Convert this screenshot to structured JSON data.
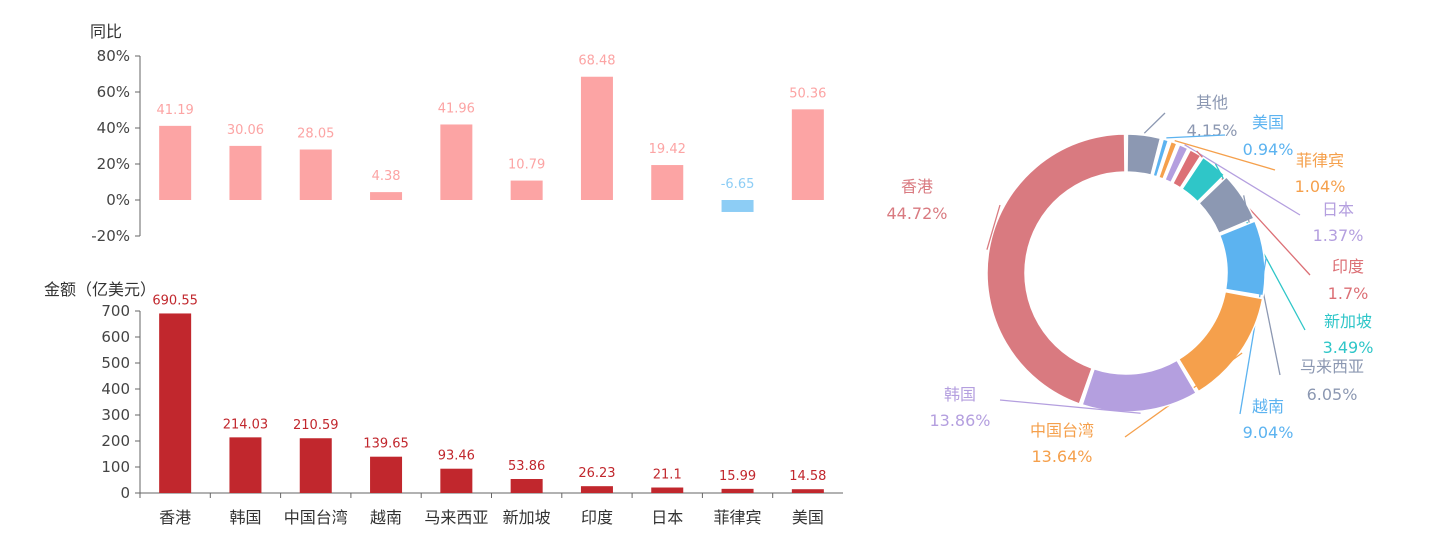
{
  "chart_data": [
    {
      "type": "bar",
      "ylabel": "同比",
      "categories": [
        "香港",
        "韩国",
        "中国台湾",
        "越南",
        "马来西亚",
        "新加坡",
        "印度",
        "日本",
        "菲律宾",
        "美国"
      ],
      "values": [
        41.19,
        30.06,
        28.05,
        4.38,
        41.96,
        10.79,
        68.48,
        19.42,
        -6.65,
        50.36
      ],
      "ylim": [
        -20,
        80
      ],
      "yticks": [
        "-20%",
        "0%",
        "20%",
        "40%",
        "60%",
        "80%"
      ],
      "colors": {
        "positive": "#fca4a4",
        "negative": "#8dcdf5"
      }
    },
    {
      "type": "bar",
      "ylabel": "金额（亿美元）",
      "categories": [
        "香港",
        "韩国",
        "中国台湾",
        "越南",
        "马来西亚",
        "新加坡",
        "印度",
        "日本",
        "菲律宾",
        "美国"
      ],
      "values": [
        690.55,
        214.03,
        210.59,
        139.65,
        93.46,
        53.86,
        26.23,
        21.1,
        15.99,
        14.58
      ],
      "ylim": [
        0,
        700
      ],
      "yticks": [
        "0",
        "100",
        "200",
        "300",
        "400",
        "500",
        "600",
        "700"
      ],
      "xtick_labels": [
        "香港",
        "韩国",
        "中国台湾",
        "越南",
        "马来西亚",
        "新加坡",
        "印度",
        "日本",
        "菲律宾",
        "美国"
      ],
      "colors": {
        "bar": "#c1272d"
      }
    },
    {
      "type": "pie",
      "variant": "donut",
      "slices": [
        {
          "label": "其他",
          "value": 4.15,
          "text": "4.15%",
          "color": "#8c98b2"
        },
        {
          "label": "美国",
          "value": 0.94,
          "text": "0.94%",
          "color": "#5cb3f0"
        },
        {
          "label": "菲律宾",
          "value": 1.04,
          "text": "1.04%",
          "color": "#f5a04c"
        },
        {
          "label": "日本",
          "value": 1.37,
          "text": "1.37%",
          "color": "#b49fdf"
        },
        {
          "label": "印度",
          "value": 1.7,
          "text": "1.7%",
          "color": "#dc7076"
        },
        {
          "label": "新加坡",
          "value": 3.49,
          "text": "3.49%",
          "color": "#2fc6c8"
        },
        {
          "label": "马来西亚",
          "value": 6.05,
          "text": "6.05%",
          "color": "#8c98b2"
        },
        {
          "label": "越南",
          "value": 9.04,
          "text": "9.04%",
          "color": "#5cb3f0"
        },
        {
          "label": "中国台湾",
          "value": 13.64,
          "text": "13.64%",
          "color": "#f5a04c"
        },
        {
          "label": "韩国",
          "value": 13.86,
          "text": "13.86%",
          "color": "#b49fdf"
        },
        {
          "label": "香港",
          "value": 44.72,
          "text": "44.72%",
          "color": "#d97a80"
        }
      ]
    }
  ]
}
